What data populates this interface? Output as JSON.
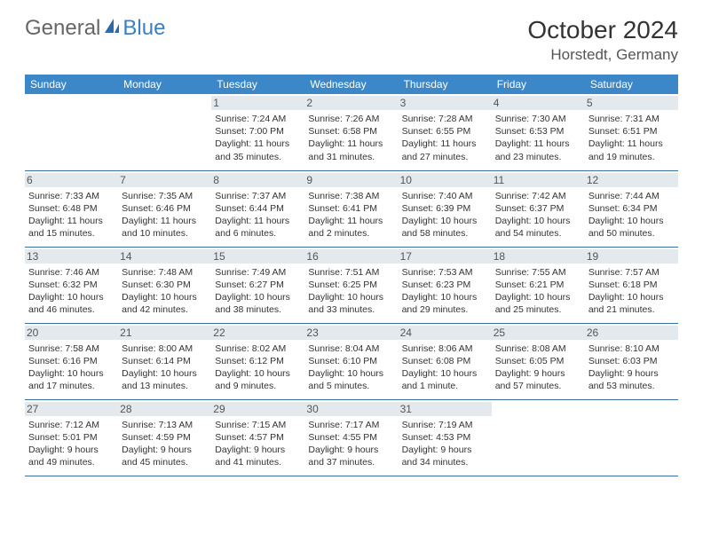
{
  "logo": {
    "general": "General",
    "blue": "Blue"
  },
  "title": "October 2024",
  "location": "Horstedt, Germany",
  "colors": {
    "header_bg": "#3b87c8",
    "header_fg": "#ffffff",
    "daynum_bg": "#e4e9ee",
    "row_border": "#3b6fa0",
    "logo_blue": "#3b7fc4"
  },
  "dow": [
    "Sunday",
    "Monday",
    "Tuesday",
    "Wednesday",
    "Thursday",
    "Friday",
    "Saturday"
  ],
  "weeks": [
    [
      null,
      null,
      {
        "n": "1",
        "sr": "7:24 AM",
        "ss": "7:00 PM",
        "dl": "11 hours and 35 minutes."
      },
      {
        "n": "2",
        "sr": "7:26 AM",
        "ss": "6:58 PM",
        "dl": "11 hours and 31 minutes."
      },
      {
        "n": "3",
        "sr": "7:28 AM",
        "ss": "6:55 PM",
        "dl": "11 hours and 27 minutes."
      },
      {
        "n": "4",
        "sr": "7:30 AM",
        "ss": "6:53 PM",
        "dl": "11 hours and 23 minutes."
      },
      {
        "n": "5",
        "sr": "7:31 AM",
        "ss": "6:51 PM",
        "dl": "11 hours and 19 minutes."
      }
    ],
    [
      {
        "n": "6",
        "sr": "7:33 AM",
        "ss": "6:48 PM",
        "dl": "11 hours and 15 minutes."
      },
      {
        "n": "7",
        "sr": "7:35 AM",
        "ss": "6:46 PM",
        "dl": "11 hours and 10 minutes."
      },
      {
        "n": "8",
        "sr": "7:37 AM",
        "ss": "6:44 PM",
        "dl": "11 hours and 6 minutes."
      },
      {
        "n": "9",
        "sr": "7:38 AM",
        "ss": "6:41 PM",
        "dl": "11 hours and 2 minutes."
      },
      {
        "n": "10",
        "sr": "7:40 AM",
        "ss": "6:39 PM",
        "dl": "10 hours and 58 minutes."
      },
      {
        "n": "11",
        "sr": "7:42 AM",
        "ss": "6:37 PM",
        "dl": "10 hours and 54 minutes."
      },
      {
        "n": "12",
        "sr": "7:44 AM",
        "ss": "6:34 PM",
        "dl": "10 hours and 50 minutes."
      }
    ],
    [
      {
        "n": "13",
        "sr": "7:46 AM",
        "ss": "6:32 PM",
        "dl": "10 hours and 46 minutes."
      },
      {
        "n": "14",
        "sr": "7:48 AM",
        "ss": "6:30 PM",
        "dl": "10 hours and 42 minutes."
      },
      {
        "n": "15",
        "sr": "7:49 AM",
        "ss": "6:27 PM",
        "dl": "10 hours and 38 minutes."
      },
      {
        "n": "16",
        "sr": "7:51 AM",
        "ss": "6:25 PM",
        "dl": "10 hours and 33 minutes."
      },
      {
        "n": "17",
        "sr": "7:53 AM",
        "ss": "6:23 PM",
        "dl": "10 hours and 29 minutes."
      },
      {
        "n": "18",
        "sr": "7:55 AM",
        "ss": "6:21 PM",
        "dl": "10 hours and 25 minutes."
      },
      {
        "n": "19",
        "sr": "7:57 AM",
        "ss": "6:18 PM",
        "dl": "10 hours and 21 minutes."
      }
    ],
    [
      {
        "n": "20",
        "sr": "7:58 AM",
        "ss": "6:16 PM",
        "dl": "10 hours and 17 minutes."
      },
      {
        "n": "21",
        "sr": "8:00 AM",
        "ss": "6:14 PM",
        "dl": "10 hours and 13 minutes."
      },
      {
        "n": "22",
        "sr": "8:02 AM",
        "ss": "6:12 PM",
        "dl": "10 hours and 9 minutes."
      },
      {
        "n": "23",
        "sr": "8:04 AM",
        "ss": "6:10 PM",
        "dl": "10 hours and 5 minutes."
      },
      {
        "n": "24",
        "sr": "8:06 AM",
        "ss": "6:08 PM",
        "dl": "10 hours and 1 minute."
      },
      {
        "n": "25",
        "sr": "8:08 AM",
        "ss": "6:05 PM",
        "dl": "9 hours and 57 minutes."
      },
      {
        "n": "26",
        "sr": "8:10 AM",
        "ss": "6:03 PM",
        "dl": "9 hours and 53 minutes."
      }
    ],
    [
      {
        "n": "27",
        "sr": "7:12 AM",
        "ss": "5:01 PM",
        "dl": "9 hours and 49 minutes."
      },
      {
        "n": "28",
        "sr": "7:13 AM",
        "ss": "4:59 PM",
        "dl": "9 hours and 45 minutes."
      },
      {
        "n": "29",
        "sr": "7:15 AM",
        "ss": "4:57 PM",
        "dl": "9 hours and 41 minutes."
      },
      {
        "n": "30",
        "sr": "7:17 AM",
        "ss": "4:55 PM",
        "dl": "9 hours and 37 minutes."
      },
      {
        "n": "31",
        "sr": "7:19 AM",
        "ss": "4:53 PM",
        "dl": "9 hours and 34 minutes."
      },
      null,
      null
    ]
  ],
  "labels": {
    "sunrise": "Sunrise: ",
    "sunset": "Sunset: ",
    "daylight": "Daylight: "
  }
}
